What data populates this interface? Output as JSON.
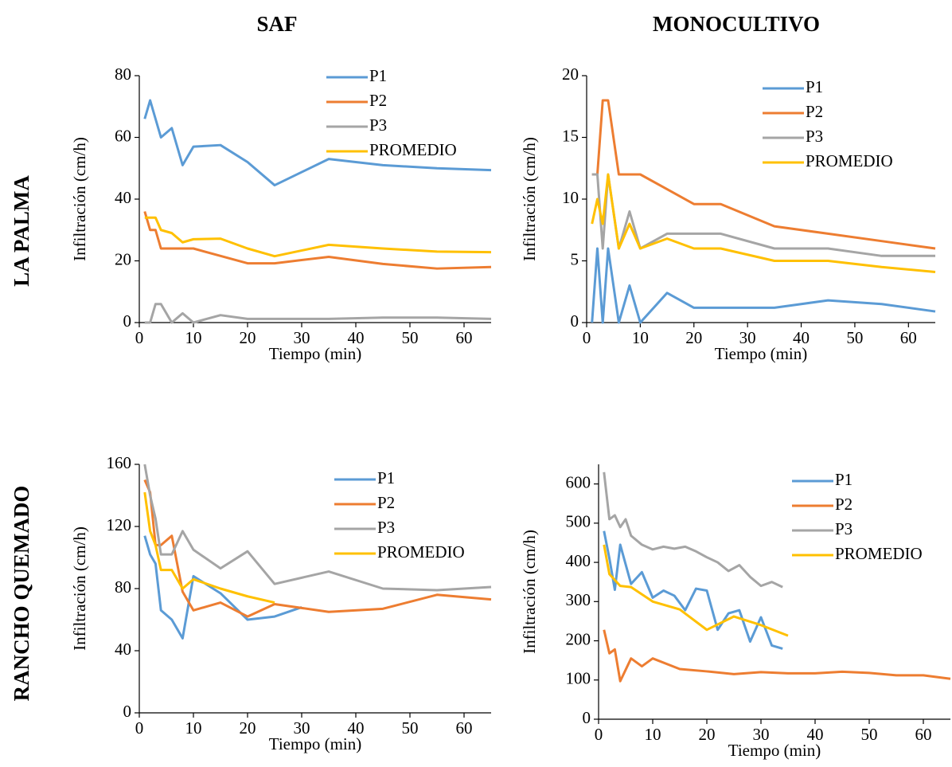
{
  "figure": {
    "columns": [
      "SAF",
      "MONOCULTIVO"
    ],
    "rows": [
      "LA PALMA",
      "RANCHO QUEMADO"
    ]
  },
  "chart_data": [
    {
      "type": "line",
      "xlabel": "Tiempo (min)",
      "ylabel": "Infiltración (cm/h)",
      "xlim": [
        0,
        65
      ],
      "xticks": [
        0,
        10,
        20,
        30,
        40,
        50,
        60
      ],
      "ylim": [
        0,
        80
      ],
      "yticks": [
        0,
        20,
        40,
        60,
        80
      ],
      "grid": false,
      "legend": "upper right",
      "series": [
        {
          "name": "P1",
          "color": "#5b9bd5",
          "x": [
            1,
            2,
            3,
            4,
            6,
            8,
            10,
            15,
            20,
            25,
            35,
            45,
            55,
            65
          ],
          "values": [
            66,
            72,
            66,
            60,
            63,
            51,
            57,
            57.5,
            52,
            44.5,
            53,
            51,
            50,
            49.4
          ]
        },
        {
          "name": "P2",
          "color": "#ed7d31",
          "x": [
            1,
            2,
            3,
            4,
            6,
            8,
            10,
            15,
            20,
            25,
            35,
            45,
            55,
            65
          ],
          "values": [
            36,
            30,
            30,
            24,
            24,
            24,
            24,
            21.6,
            19.2,
            19.2,
            21.3,
            19,
            17.5,
            18
          ]
        },
        {
          "name": "P3",
          "color": "#a5a5a5",
          "x": [
            1,
            2,
            3,
            4,
            6,
            8,
            10,
            15,
            20,
            25,
            35,
            45,
            55,
            65
          ],
          "values": [
            0,
            0,
            6,
            6,
            0,
            3,
            0,
            2.4,
            1.2,
            1.2,
            1.2,
            1.6,
            1.6,
            1.2
          ]
        },
        {
          "name": "PROMEDIO",
          "color": "#ffc000",
          "x": [
            1,
            2,
            3,
            4,
            6,
            8,
            10,
            15,
            20,
            25,
            35,
            45,
            55,
            65
          ],
          "values": [
            34,
            34,
            34,
            30,
            29,
            26,
            27,
            27.2,
            24,
            21.5,
            25.2,
            24,
            23,
            22.8
          ]
        }
      ]
    },
    {
      "type": "line",
      "xlabel": "Tiempo (min)",
      "ylabel": "Infiltración (cm/h)",
      "xlim": [
        0,
        65
      ],
      "xticks": [
        0,
        10,
        20,
        30,
        40,
        50,
        60
      ],
      "ylim": [
        0,
        20
      ],
      "yticks": [
        0,
        5,
        10,
        15,
        20
      ],
      "grid": false,
      "legend": "upper right",
      "series": [
        {
          "name": "P1",
          "color": "#5b9bd5",
          "x": [
            1,
            2,
            3,
            4,
            6,
            8,
            10,
            15,
            20,
            25,
            35,
            45,
            55,
            65
          ],
          "values": [
            0,
            6,
            0,
            6,
            0,
            3,
            0,
            2.4,
            1.2,
            1.2,
            1.2,
            1.8,
            1.5,
            0.9
          ]
        },
        {
          "name": "P2",
          "color": "#ed7d31",
          "x": [
            1,
            2,
            3,
            4,
            6,
            8,
            10,
            15,
            20,
            25,
            35,
            45,
            55,
            65
          ],
          "values": [
            12,
            12,
            18,
            18,
            12,
            12,
            12,
            10.8,
            9.6,
            9.6,
            7.8,
            7.2,
            6.6,
            6
          ]
        },
        {
          "name": "P3",
          "color": "#a5a5a5",
          "x": [
            1,
            2,
            3,
            4,
            6,
            8,
            10,
            15,
            20,
            25,
            35,
            45,
            55,
            65
          ],
          "values": [
            12,
            12,
            6,
            12,
            6,
            9,
            6,
            7.2,
            7.2,
            7.2,
            6,
            6,
            5.4,
            5.4
          ]
        },
        {
          "name": "PROMEDIO",
          "color": "#ffc000",
          "x": [
            1,
            2,
            3,
            4,
            6,
            8,
            10,
            15,
            20,
            25,
            35,
            45,
            55,
            65
          ],
          "values": [
            8,
            10,
            8,
            12,
            6,
            8,
            6,
            6.8,
            6,
            6,
            5,
            5,
            4.5,
            4.1
          ]
        }
      ]
    },
    {
      "type": "line",
      "xlabel": "Tiempo (min)",
      "ylabel": "Infiltración (cm/h)",
      "xlim": [
        0,
        65
      ],
      "xticks": [
        0,
        10,
        20,
        30,
        40,
        50,
        60
      ],
      "ylim": [
        0,
        160
      ],
      "yticks": [
        0,
        40,
        80,
        120,
        160
      ],
      "grid": false,
      "legend": "upper right",
      "series": [
        {
          "name": "P1",
          "color": "#5b9bd5",
          "x": [
            1,
            2,
            3,
            4,
            6,
            8,
            10,
            15,
            20,
            25,
            30
          ],
          "values": [
            114,
            102,
            96,
            66,
            60,
            48,
            88,
            77,
            60,
            62,
            68
          ]
        },
        {
          "name": "P2",
          "color": "#ed7d31",
          "x": [
            1,
            2,
            3,
            4,
            6,
            8,
            10,
            15,
            20,
            25,
            35,
            45,
            55,
            65
          ],
          "values": [
            150,
            142,
            108,
            108,
            114,
            78,
            66,
            71,
            62,
            70,
            65,
            67,
            76,
            73
          ]
        },
        {
          "name": "P3",
          "color": "#a5a5a5",
          "x": [
            1,
            2,
            3,
            4,
            6,
            8,
            10,
            15,
            20,
            25,
            35,
            45,
            55,
            65
          ],
          "values": [
            160,
            140,
            125,
            102,
            102,
            117,
            105,
            93,
            104,
            83,
            91,
            80,
            79,
            81
          ]
        },
        {
          "name": "PROMEDIO",
          "color": "#ffc000",
          "x": [
            1,
            2,
            3,
            4,
            6,
            8,
            10,
            15,
            20,
            25
          ],
          "values": [
            142,
            117,
            108,
            92,
            92,
            80,
            86,
            80,
            75,
            71
          ]
        }
      ]
    },
    {
      "type": "line",
      "xlabel": "Tiempo (min)",
      "ylabel": "Infiltración (cm/h)",
      "xlim": [
        0,
        65
      ],
      "xticks": [
        0,
        10,
        20,
        30,
        40,
        50,
        60
      ],
      "ylim": [
        0,
        650
      ],
      "yticks": [
        0,
        100,
        200,
        300,
        400,
        500,
        600
      ],
      "grid": false,
      "legend": "upper right",
      "series": [
        {
          "name": "P1",
          "color": "#5b9bd5",
          "x": [
            1,
            2,
            3,
            4,
            6,
            8,
            10,
            12,
            14,
            16,
            18,
            20,
            22,
            24,
            26,
            28,
            30,
            32,
            34
          ],
          "values": [
            480,
            410,
            330,
            445,
            345,
            375,
            310,
            328,
            315,
            278,
            333,
            328,
            228,
            270,
            278,
            198,
            260,
            188,
            180
          ]
        },
        {
          "name": "P2",
          "color": "#ed7d31",
          "x": [
            1,
            2,
            3,
            4,
            6,
            8,
            10,
            15,
            20,
            25,
            30,
            35,
            40,
            45,
            50,
            55,
            60,
            65
          ],
          "values": [
            228,
            168,
            178,
            97,
            155,
            135,
            155,
            128,
            122,
            115,
            120,
            117,
            117,
            121,
            118,
            112,
            112,
            103
          ]
        },
        {
          "name": "P3",
          "color": "#a5a5a5",
          "x": [
            1,
            2,
            3,
            4,
            5,
            6,
            8,
            10,
            12,
            14,
            16,
            18,
            20,
            22,
            24,
            26,
            28,
            30,
            32,
            34
          ],
          "values": [
            630,
            510,
            520,
            490,
            510,
            468,
            445,
            433,
            440,
            435,
            440,
            428,
            413,
            400,
            378,
            393,
            363,
            340,
            350,
            337
          ]
        },
        {
          "name": "PROMEDIO",
          "color": "#ffc000",
          "x": [
            1,
            2,
            4,
            6,
            10,
            15,
            20,
            25,
            30,
            35
          ],
          "values": [
            445,
            370,
            340,
            337,
            300,
            280,
            228,
            262,
            240,
            213
          ]
        }
      ]
    }
  ]
}
